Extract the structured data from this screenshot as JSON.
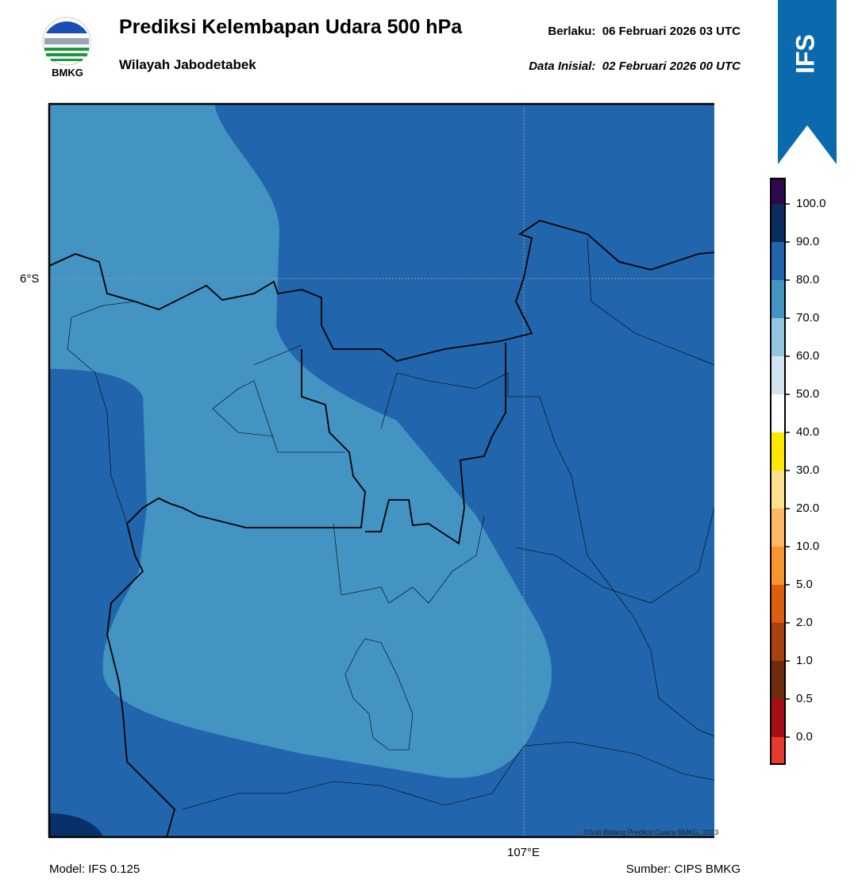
{
  "header": {
    "title": "Prediksi Kelembapan Udara 500 hPa",
    "subtitle": "Wilayah Jabodetabek",
    "valid_label": "Berlaku:",
    "valid_date": "06 Februari 2026 03 UTC",
    "init_label": "Data Inisial:",
    "init_date": "02 Februari 2026 00 UTC",
    "logo_text": "BMKG"
  },
  "badge": "IFS",
  "map": {
    "lat_label": "6°S",
    "lon_label": "107°E",
    "credit": "©Sub Bidang Prediksi Cuaca BMKG, 2023"
  },
  "colorbar": {
    "labels": [
      "100.0",
      "90.0",
      "80.0",
      "70.0",
      "60.0",
      "50.0",
      "40.0",
      "30.0",
      "20.0",
      "10.0",
      "5.0",
      "2.0",
      "1.0",
      "0.5",
      "0.0"
    ],
    "colors": [
      "#2d0a4e",
      "#0b2c5e",
      "#2166ac",
      "#4393c3",
      "#92c5de",
      "#d1e5f0",
      "#ffffff",
      "#ffe600",
      "#fee090",
      "#fdb863",
      "#f7962c",
      "#dd5e0e",
      "#a8400f",
      "#6e2c0c",
      "#a50f15",
      "#e63a2e"
    ]
  },
  "footer": {
    "model": "Model: IFS 0.125",
    "source": "Sumber: CIPS BMKG"
  }
}
